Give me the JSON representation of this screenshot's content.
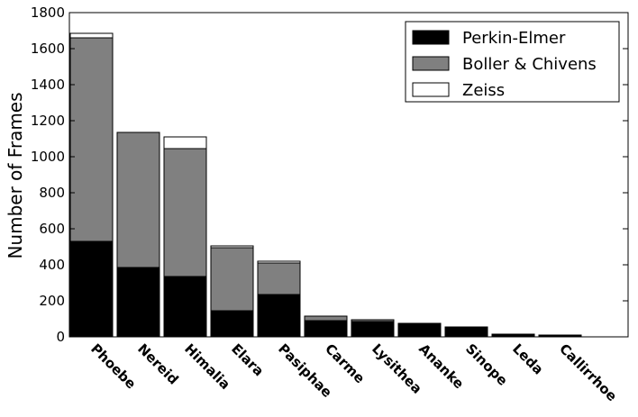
{
  "chart_data": {
    "type": "bar",
    "stacked": true,
    "categories": [
      "Phoebe",
      "Nereid",
      "Himalia",
      "Elara",
      "Pasiphae",
      "Carme",
      "Lysithea",
      "Ananke",
      "Sinope",
      "Leda",
      "Callirrhoe"
    ],
    "series": [
      {
        "name": "Perkin-Elmer",
        "color": "#000000",
        "values": [
          530,
          385,
          335,
          145,
          235,
          90,
          85,
          75,
          55,
          15,
          10
        ]
      },
      {
        "name": "Boller & Chivens",
        "color": "#808080",
        "values": [
          1130,
          750,
          710,
          350,
          175,
          25,
          10,
          0,
          0,
          0,
          0
        ]
      },
      {
        "name": "Zeiss",
        "color": "#ffffff",
        "values": [
          25,
          0,
          65,
          10,
          10,
          0,
          0,
          0,
          0,
          0,
          0
        ]
      }
    ],
    "ylabel": "Number of Frames",
    "xlabel": "",
    "ylim": [
      0,
      1800
    ],
    "yticks": [
      0,
      200,
      400,
      600,
      800,
      1000,
      1200,
      1400,
      1600,
      1800
    ],
    "grid": false,
    "legend_position": "top-right"
  }
}
